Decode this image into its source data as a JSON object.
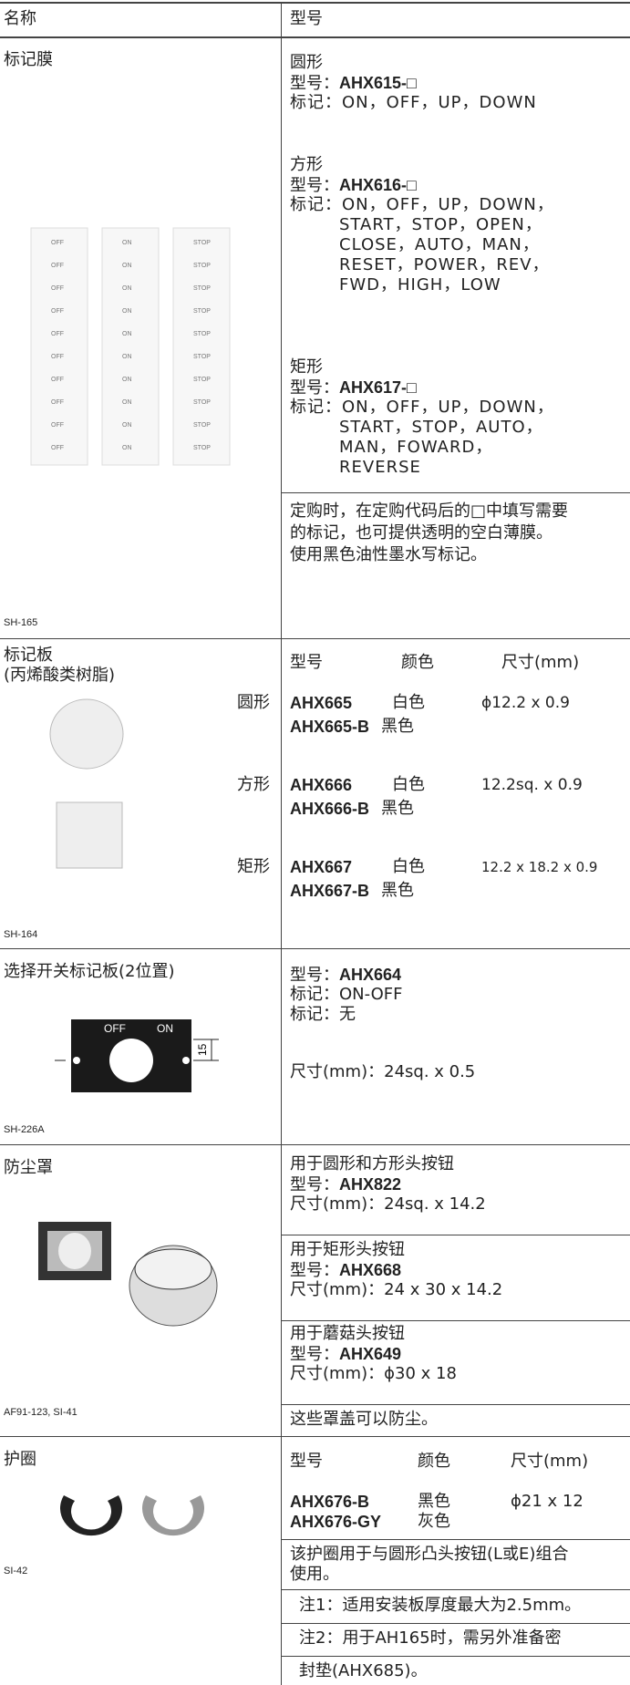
{
  "header": {
    "name": "名称",
    "model": "型号"
  },
  "marking_film": {
    "name": "标记膜",
    "image_code": "SH-165",
    "strips": [
      [
        "OFF",
        "OFF",
        "OFF",
        "OFF",
        "OFF",
        "OFF",
        "OFF",
        "OFF",
        "OFF",
        "OFF"
      ],
      [
        "ON",
        "ON",
        "ON",
        "ON",
        "ON",
        "ON",
        "ON",
        "ON",
        "ON",
        "ON"
      ],
      [
        "STOP",
        "STOP",
        "STOP",
        "STOP",
        "STOP",
        "STOP",
        "STOP",
        "STOP",
        "STOP",
        "STOP"
      ]
    ],
    "round": {
      "shape": "圆形",
      "model_label": "型号：",
      "model": "AHX615-□",
      "mark_label": "标记：",
      "marks": [
        "ON，OFF，UP，DOWN"
      ]
    },
    "square": {
      "shape": "方形",
      "model_label": "型号：",
      "model": "AHX616-□",
      "mark_label": "标记：",
      "marks": [
        "ON，OFF，UP，DOWN，",
        "START，STOP，OPEN，",
        "CLOSE，AUTO，MAN，",
        "RESET，POWER，REV，",
        "FWD，HIGH，LOW"
      ]
    },
    "rectangle": {
      "shape": "矩形",
      "model_label": "型号：",
      "model": "AHX617-□",
      "mark_label": "标记：",
      "marks": [
        "ON，OFF，UP，DOWN，",
        "START，STOP，AUTO，",
        "MAN，FOWARD，",
        "REVERSE"
      ]
    },
    "note": [
      "定购时，在定购代码后的□中填写需要",
      "的标记，也可提供透明的空白薄膜。",
      "使用黑色油性墨水写标记。"
    ]
  },
  "marking_plate": {
    "name": "标记板",
    "material": "(丙烯酸类树脂)",
    "image_code": "SH-164",
    "columns": [
      "型号",
      "颜色",
      "尺寸(mm)"
    ],
    "groups": [
      {
        "shape": "圆形",
        "items": [
          {
            "model": "AHX665",
            "color": "白色",
            "size": "ϕ12.2 x 0.9"
          },
          {
            "model": "AHX665-B",
            "color": "黑色"
          }
        ]
      },
      {
        "shape": "方形",
        "items": [
          {
            "model": "AHX666",
            "color": "白色",
            "size": "12.2sq. x 0.9"
          },
          {
            "model": "AHX666-B",
            "color": "黑色"
          }
        ]
      },
      {
        "shape": "矩形",
        "items": [
          {
            "model": "AHX667",
            "color": "白色",
            "size": "12.2 x 18.2 x 0.9"
          },
          {
            "model": "AHX667-B",
            "color": "黑色"
          }
        ]
      }
    ]
  },
  "selector_plate": {
    "name": "选择开关标记板(2位置)",
    "image_code": "SH-226A",
    "plate_labels": [
      "OFF",
      "ON"
    ],
    "dimension": "15",
    "model_label": "型号：",
    "model": "AHX664",
    "lines": [
      "标记：ON-OFF",
      "标记：无"
    ],
    "size": "尺寸(mm)：24sq. x 0.5"
  },
  "dust_cover": {
    "name": "防尘罩",
    "image_code": "AF91-123, SI-41",
    "blocks": [
      {
        "use": "用于圆形和方形头按钮",
        "model_label": "型号：",
        "model": "AHX822",
        "size": "尺寸(mm)：24sq. x 14.2"
      },
      {
        "use": "用于矩形头按钮",
        "model_label": "型号：",
        "model": "AHX668",
        "size": "尺寸(mm)：24 x 30 x 14.2"
      },
      {
        "use": "用于蘑菇头按钮",
        "model_label": "型号：",
        "model": "AHX649",
        "size": "尺寸(mm)：ϕ30 x 18"
      }
    ],
    "note": "这些罩盖可以防尘。"
  },
  "guard_ring": {
    "name": "护圈",
    "image_code": "SI-42",
    "columns": [
      "型号",
      "颜色",
      "尺寸(mm)"
    ],
    "items": [
      {
        "model": "AHX676-B",
        "color": "黑色",
        "size": "ϕ21 x 12"
      },
      {
        "model": "AHX676-GY",
        "color": "灰色"
      }
    ],
    "description": [
      "该护圈用于与圆形凸头按钮(L或E)组合",
      "使用。"
    ],
    "notes": [
      "注1：适用安装板厚度最大为2.5mm。",
      "注2：用于AH165时，需另外准备密",
      "封垫(AHX685)。"
    ]
  }
}
